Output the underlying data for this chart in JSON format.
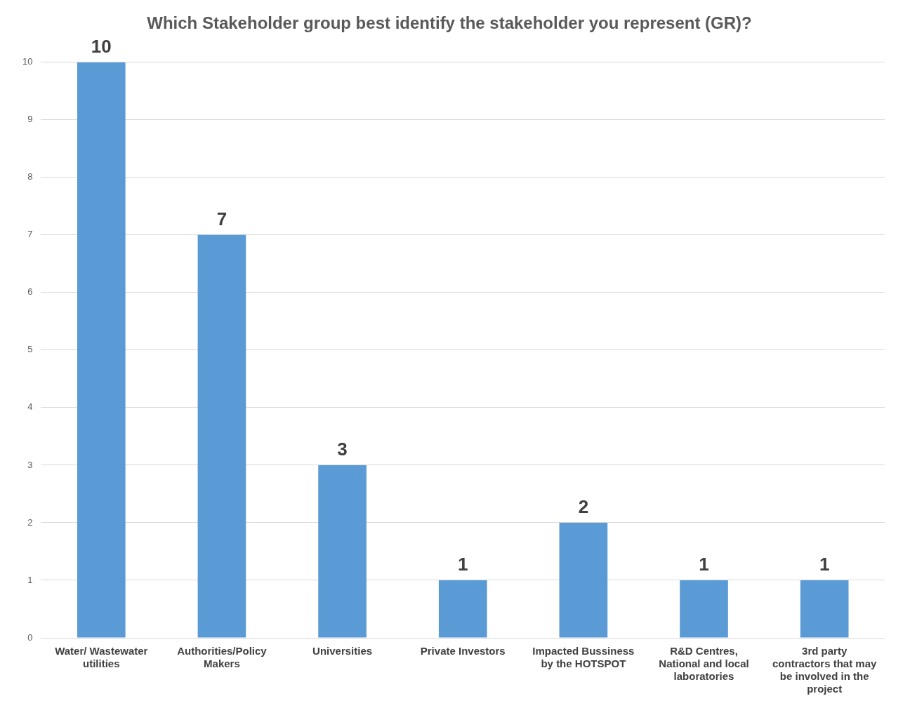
{
  "chart_data": {
    "type": "bar",
    "title": "Which Stakeholder group best identify the stakeholder you represent (GR)?",
    "categories": [
      "Water/ Wastewater utilities",
      "Authorities/Policy Makers",
      "Universities",
      "Private Investors",
      "Impacted Bussiness by the HOTSPOT",
      "R&D Centres, National and local laboratories",
      "3rd party contractors that may be involved in the project"
    ],
    "values": [
      10,
      7,
      3,
      1,
      2,
      1,
      1
    ],
    "color": "#5b9bd5",
    "ylim": [
      0,
      10
    ],
    "yticks": [
      0,
      1,
      2,
      3,
      4,
      5,
      6,
      7,
      8,
      9,
      10
    ],
    "grid": "y",
    "legend": false,
    "data_labels": true
  }
}
